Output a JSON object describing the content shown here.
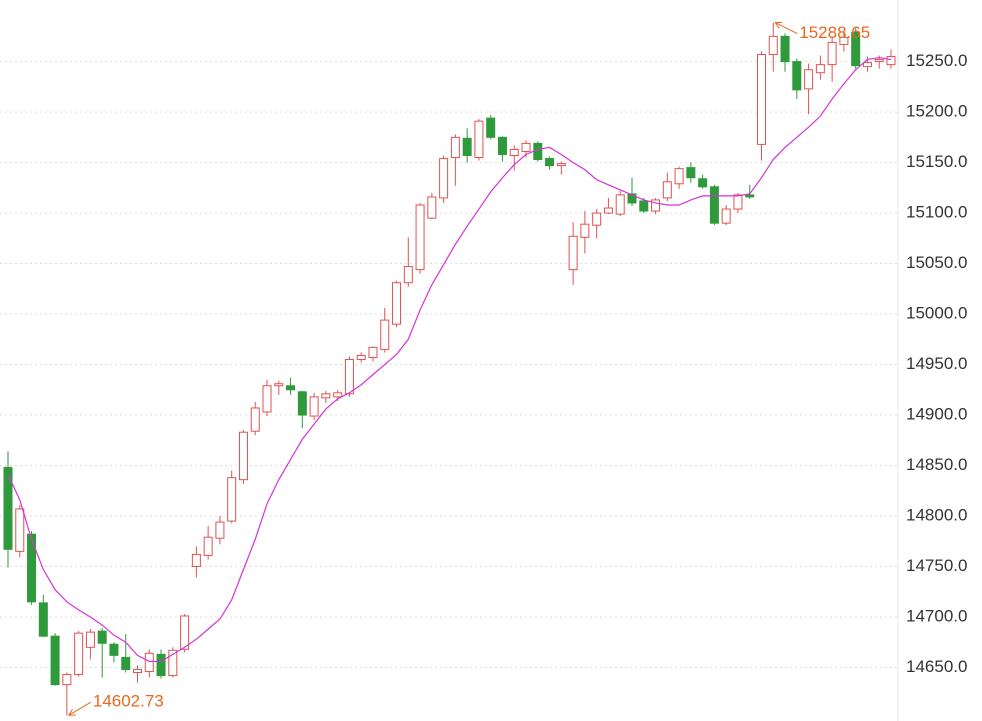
{
  "chart_data": {
    "type": "candlestick",
    "up_color": "#e05252",
    "down_color": "#2f9a3c",
    "open": [
      14848,
      14765,
      14782,
      14714,
      14681,
      14633,
      14643,
      14670,
      14686,
      14673,
      14660,
      14645,
      14646,
      14663,
      14642,
      14668,
      14750,
      14761,
      14778,
      14795,
      14836,
      14884,
      14903,
      14929,
      14929,
      14923,
      14899,
      14917,
      14918,
      14921,
      14955,
      14957,
      14965,
      14990,
      15031,
      15044,
      15095,
      15115,
      15155,
      15174,
      15155,
      15194,
      15175,
      15157,
      15161,
      15169,
      15154,
      15147,
      15044,
      15076,
      15088,
      15100,
      15099,
      15119,
      15112,
      15102,
      15115,
      15129,
      15145,
      15134,
      15126,
      15090,
      15104,
      15118,
      15168,
      15257,
      15275,
      15250,
      15223,
      15239,
      15247,
      15267,
      15279,
      15245,
      15250,
      15247
    ],
    "high": [
      14864,
      14811,
      14785,
      14722,
      14684,
      14645,
      14686,
      14688,
      14689,
      14675,
      14683,
      14652,
      14668,
      14668,
      14670,
      14703,
      14770,
      14790,
      14800,
      14845,
      14885,
      14913,
      14935,
      14934,
      14937,
      14924,
      14922,
      14924,
      14925,
      14958,
      14962,
      14968,
      15006,
      15033,
      15076,
      15110,
      15120,
      15157,
      15178,
      15184,
      15193,
      15197,
      15176,
      15167,
      15172,
      15171,
      15156,
      15151,
      15091,
      15102,
      15104,
      15115,
      15122,
      15135,
      15115,
      15115,
      15140,
      15146,
      15150,
      15138,
      15128,
      15108,
      15120,
      15128,
      15260,
      15288.65,
      15278,
      15253,
      15248,
      15256,
      15275,
      15280,
      15283,
      15255,
      15256,
      15262
    ],
    "low": [
      14749,
      14759,
      14712,
      14680,
      14632,
      14602.73,
      14641,
      14658,
      14640,
      14655,
      14645,
      14635,
      14640,
      14639,
      14640,
      14665,
      14739,
      14757,
      14772,
      14793,
      14832,
      14880,
      14899,
      14920,
      14920,
      14887,
      14895,
      14912,
      14914,
      14918,
      14952,
      14953,
      14962,
      14987,
      15027,
      15040,
      15094,
      15110,
      15127,
      15150,
      15152,
      15173,
      15151,
      15142,
      15155,
      15151,
      15143,
      15138,
      15029,
      15060,
      15075,
      15099,
      15097,
      15107,
      15100,
      15099,
      15112,
      15124,
      15130,
      15124,
      15088,
      15088,
      15100,
      15114,
      15152,
      15240,
      15240,
      15213,
      15198,
      15232,
      15230,
      15260,
      15243,
      15240,
      15243,
      15243
    ],
    "close": [
      14767,
      14807,
      14715,
      14681,
      14633,
      14643,
      14684,
      14685,
      14674,
      14662,
      14648,
      14648,
      14664,
      14642,
      14667,
      14701,
      14762,
      14779,
      14794,
      14838,
      14883,
      14907,
      14929,
      14931,
      14925,
      14900,
      14918,
      14921,
      14922,
      14955,
      14959,
      14967,
      14994,
      15031,
      15047,
      15108,
      15116,
      15154,
      15175,
      15157,
      15191,
      15175,
      15158,
      15163,
      15169,
      15153,
      15147,
      15149,
      15077,
      15089,
      15100,
      15105,
      15118,
      15110,
      15102,
      15113,
      15131,
      15144,
      15135,
      15126,
      15090,
      15104,
      15118,
      15116,
      15257,
      15275,
      15250,
      15222,
      15242,
      15247,
      15269,
      15274,
      15246,
      15249,
      15252,
      15255
    ],
    "ma": {
      "color": "#d633d6",
      "values": [
        14841,
        14816,
        14777,
        14747,
        14727,
        14715,
        14707,
        14700,
        14692,
        14682,
        14675,
        14662,
        14656,
        14656,
        14663,
        14670,
        14678,
        14688,
        14698,
        14717,
        14747,
        14777,
        14812,
        14836,
        14856,
        14876,
        14891,
        14906,
        14916,
        14922,
        14930,
        14940,
        14950,
        14960,
        14975,
        15004,
        15029,
        15049,
        15069,
        15087,
        15104,
        15121,
        15135,
        15148,
        15158,
        15163,
        15165,
        15158,
        15150,
        15143,
        15133,
        15128,
        15123,
        15118,
        15113,
        15110,
        15108,
        15108,
        15113,
        15117,
        15117,
        15117,
        15117,
        15119,
        15135,
        15153,
        15165,
        15175,
        15185,
        15196,
        15213,
        15228,
        15242,
        15252,
        15254,
        15252
      ]
    },
    "ylim": [
      14597,
      15311
    ],
    "yticks": [
      {
        "value": 14650,
        "label": "14650.0"
      },
      {
        "value": 14700,
        "label": "14700.0"
      },
      {
        "value": 14750,
        "label": "14750.0"
      },
      {
        "value": 14800,
        "label": "14800.0"
      },
      {
        "value": 14850,
        "label": "14850.0"
      },
      {
        "value": 14900,
        "label": "14900.0"
      },
      {
        "value": 14950,
        "label": "14950.0"
      },
      {
        "value": 15000,
        "label": "15000.0"
      },
      {
        "value": 15050,
        "label": "15050.0"
      },
      {
        "value": 15100,
        "label": "15100.0"
      },
      {
        "value": 15150,
        "label": "15150.0"
      },
      {
        "value": 15200,
        "label": "15200.0"
      },
      {
        "value": 15250,
        "label": "15250.0"
      }
    ],
    "grid": true,
    "annotation_color": "#e8691e",
    "annotations": [
      {
        "value": 15288.65,
        "label": "15288.65"
      },
      {
        "value": 14602.73,
        "label": "14602.73"
      }
    ]
  }
}
